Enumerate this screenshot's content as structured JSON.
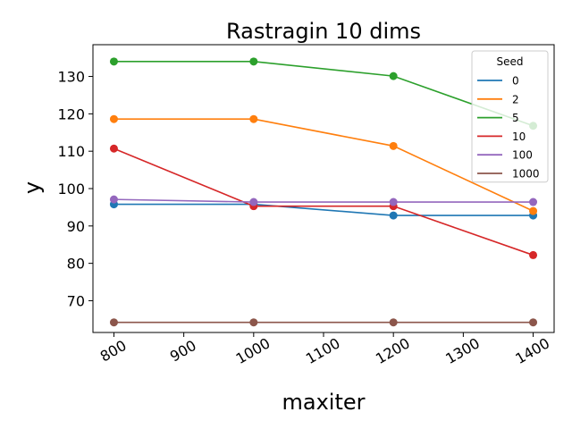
{
  "chart_data": {
    "type": "line",
    "title": "Rastragin 10 dims",
    "xlabel": "maxiter",
    "ylabel": "y",
    "x": [
      800,
      1000,
      1200,
      1400
    ],
    "xlim": [
      770,
      1430
    ],
    "ylim": [
      61.5,
      138.5
    ],
    "xticks": [
      800,
      900,
      1000,
      1100,
      1200,
      1300,
      1400
    ],
    "yticks": [
      70,
      80,
      90,
      100,
      110,
      120,
      130
    ],
    "grid": false,
    "legend": {
      "title": "Seed",
      "placement": "top-right"
    },
    "series": [
      {
        "name": "0",
        "color": "#1f77b4",
        "values": [
          95.8,
          95.8,
          92.8,
          92.8
        ]
      },
      {
        "name": "2",
        "color": "#ff7f0e",
        "values": [
          118.6,
          118.6,
          111.4,
          94.0
        ]
      },
      {
        "name": "5",
        "color": "#2ca02c",
        "values": [
          134.0,
          134.0,
          130.1,
          116.8
        ]
      },
      {
        "name": "10",
        "color": "#d62728",
        "values": [
          110.7,
          95.3,
          95.3,
          82.2
        ]
      },
      {
        "name": "100",
        "color": "#9467bd",
        "values": [
          97.1,
          96.4,
          96.4,
          96.4
        ]
      },
      {
        "name": "1000",
        "color": "#8c564b",
        "values": [
          64.2,
          64.2,
          64.2,
          64.2
        ]
      }
    ]
  }
}
